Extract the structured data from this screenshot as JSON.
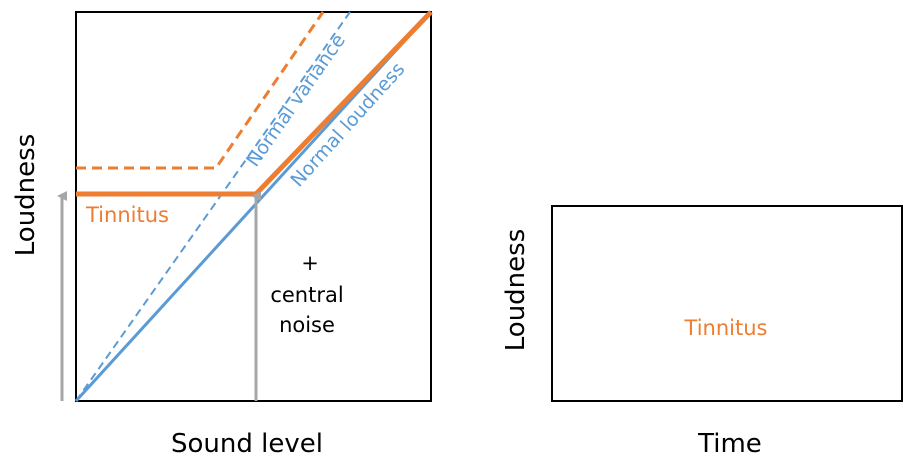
{
  "left_panel": {
    "y_axis_label": "Loudness",
    "x_axis_label": "Sound level",
    "labels": {
      "tinnitus": "Tinnitus",
      "normal_variance": "Normal variance",
      "normal_loudness": "Normal loudness",
      "central_noise_line1": "+",
      "central_noise_line2": "central",
      "central_noise_line3": "noise"
    }
  },
  "right_panel": {
    "y_axis_label": "Loudness",
    "x_axis_label": "Time",
    "tinnitus_label": "Tinnitus"
  },
  "colors": {
    "orange": "#ED7D31",
    "blue": "#5B9BD5",
    "gray_arrow": "#A6A6A6",
    "axis": "#000000"
  }
}
